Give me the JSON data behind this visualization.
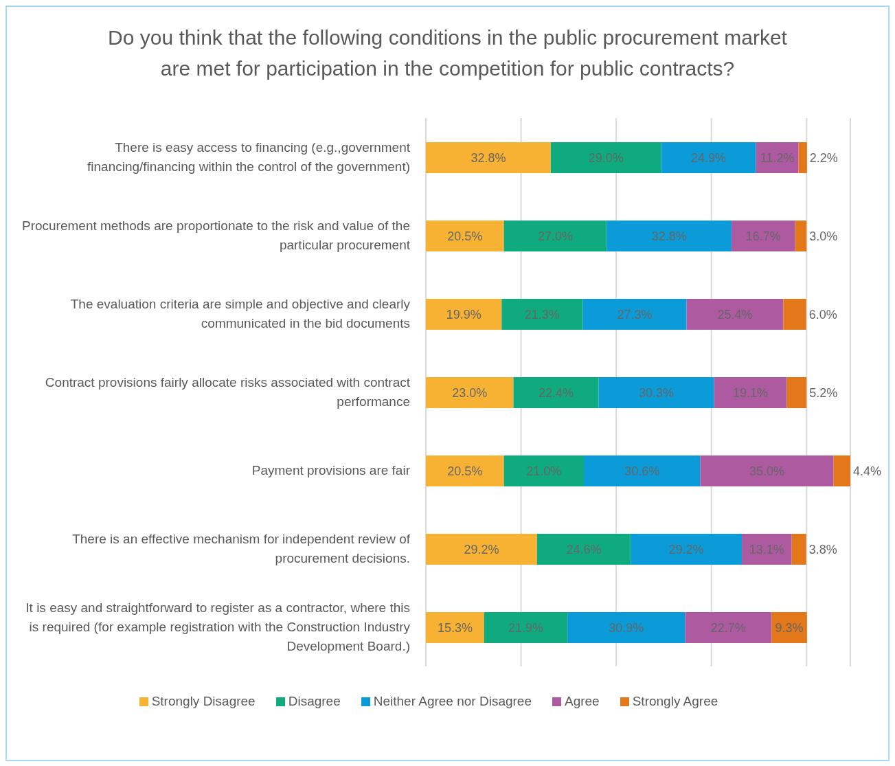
{
  "chart_data": {
    "type": "bar",
    "orientation": "horizontal",
    "stacked": true,
    "title": "Do you think that the following conditions in the public procurement market are met for participation in the competition for public contracts?",
    "categories": [
      "There is easy access to financing (e.g.,government financing/financing within the control of the government)",
      "Procurement methods are proportionate to the risk and value of the particular procurement",
      "The evaluation criteria are simple and objective and clearly communicated in the bid documents",
      "Contract provisions fairly allocate risks associated with contract performance",
      "Payment provisions are fair",
      "There is an effective mechanism for independent review of procurement decisions.",
      "It is easy and straightforward to register as a contractor, where this is required (for example registration with the Construction Industry Development Board.)"
    ],
    "series": [
      {
        "name": "Strongly Disagree",
        "color": "#f7b234",
        "values": [
          32.8,
          20.5,
          19.9,
          23.0,
          20.5,
          29.2,
          15.3
        ],
        "value_labels": [
          "32.8%",
          "20.5%",
          "19.9%",
          "23.0%",
          "20.5%",
          "29.2%",
          "15.3%"
        ]
      },
      {
        "name": "Disagree",
        "color": "#0fab7f",
        "values": [
          29.0,
          27.0,
          21.3,
          22.4,
          21.0,
          24.6,
          21.9
        ],
        "value_labels": [
          "29.0%",
          "27.0%",
          "21.3%",
          "22.4%",
          "21.0%",
          "24.6%",
          "21.9%"
        ]
      },
      {
        "name": "Neither Agree nor Disagree",
        "color": "#0b9bd8",
        "values": [
          24.9,
          32.8,
          27.3,
          30.3,
          30.6,
          29.2,
          30.9
        ],
        "value_labels": [
          "24.9%",
          "32.8%",
          "27.3%",
          "30.3%",
          "30.6%",
          "29.2%",
          "30.9%"
        ]
      },
      {
        "name": "Agree",
        "color": "#ad5aa0",
        "values": [
          11.2,
          16.7,
          25.4,
          19.1,
          35.0,
          13.1,
          22.7
        ],
        "value_labels": [
          "11.2%",
          "16.7%",
          "25.4%",
          "19.1%",
          "35.0%",
          "13.1%",
          "22.7%"
        ]
      },
      {
        "name": "Strongly Agree",
        "color": "#e2781a",
        "values": [
          2.2,
          3.0,
          6.0,
          5.2,
          4.4,
          3.8,
          9.3
        ],
        "value_labels": [
          "2.2%",
          "3.0%",
          "6.0%",
          "5.2%",
          "4.4%",
          "3.8%",
          "9.3%"
        ]
      }
    ],
    "grid": "x",
    "legend": "bottom",
    "tick_labels": "y"
  }
}
